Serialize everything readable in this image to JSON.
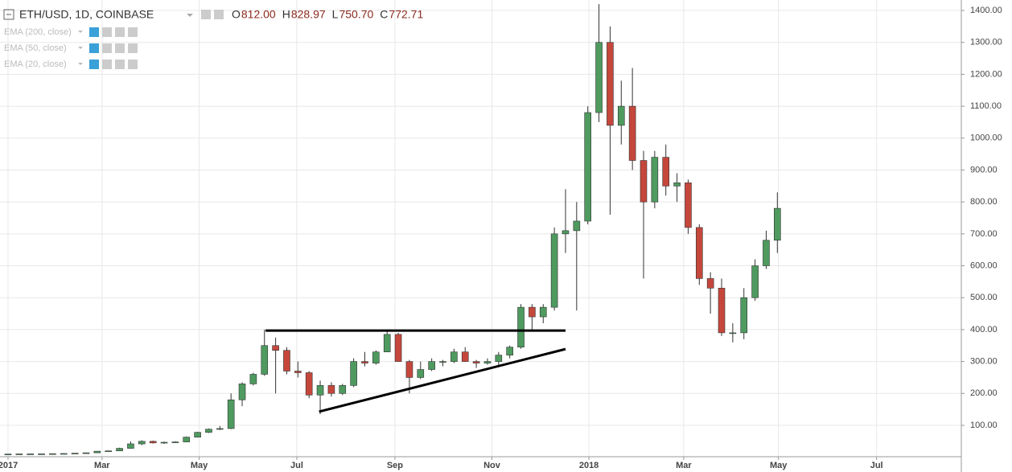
{
  "chart_data": {
    "type": "candlestick",
    "title": "ETH/USD, 1D, COINBASE",
    "ohlc_header": [
      {
        "label": "O",
        "value": "812.00"
      },
      {
        "label": "H",
        "value": "828.97"
      },
      {
        "label": "L",
        "value": "750.70"
      },
      {
        "label": "C",
        "value": "772.71"
      }
    ],
    "indicators": [
      "EMA (200, close)",
      "EMA (50, close)",
      "EMA (20, close)"
    ],
    "up_color": "#4e9a5f",
    "down_color": "#c5473c",
    "ylim": [
      1.7,
      1432.8
    ],
    "xlim": [
      -0.72,
      85.5
    ],
    "yticks": [
      {
        "value": 100,
        "label": "100.00"
      },
      {
        "value": 200,
        "label": "200.00"
      },
      {
        "value": 300,
        "label": "300.00"
      },
      {
        "value": 400,
        "label": "400.00"
      },
      {
        "value": 500,
        "label": "500.00"
      },
      {
        "value": 600,
        "label": "600.00"
      },
      {
        "value": 700,
        "label": "700.00"
      },
      {
        "value": 800,
        "label": "800.00"
      },
      {
        "value": 900,
        "label": "900.00"
      },
      {
        "value": 1000,
        "label": "1000.00"
      },
      {
        "value": 1100,
        "label": "1100.00"
      },
      {
        "value": 1200,
        "label": "1200.00"
      },
      {
        "value": 1300,
        "label": "1300.00"
      },
      {
        "value": 1400,
        "label": "1400.00"
      }
    ],
    "xticks": [
      {
        "value": 0,
        "label": "2017"
      },
      {
        "value": 8.43,
        "label": "Mar"
      },
      {
        "value": 17.14,
        "label": "May"
      },
      {
        "value": 25.9,
        "label": "Jul"
      },
      {
        "value": 34.7,
        "label": "Sep"
      },
      {
        "value": 43.4,
        "label": "Nov"
      },
      {
        "value": 52.1,
        "label": "2018"
      },
      {
        "value": 60.6,
        "label": "Mar"
      },
      {
        "value": 69.1,
        "label": "May"
      },
      {
        "value": 77.9,
        "label": "Jul"
      }
    ],
    "grid": true,
    "candles": [
      [
        8,
        10,
        8,
        10
      ],
      [
        10,
        11,
        9.5,
        10.5
      ],
      [
        10.5,
        11,
        10,
        10.6
      ],
      [
        10.6,
        11,
        10.4,
        10.7
      ],
      [
        10.7,
        11.5,
        10.5,
        11.3
      ],
      [
        11.3,
        12,
        11,
        11.8
      ],
      [
        11.8,
        13,
        11.5,
        12.8
      ],
      [
        12.8,
        15,
        12.5,
        14
      ],
      [
        14,
        19,
        14,
        19
      ],
      [
        19,
        21,
        18,
        20
      ],
      [
        20,
        30,
        20,
        28
      ],
      [
        28,
        50,
        27,
        42
      ],
      [
        42,
        53,
        38,
        50
      ],
      [
        50,
        52,
        43,
        45
      ],
      [
        45,
        49,
        42,
        47
      ],
      [
        47,
        50,
        45,
        48
      ],
      [
        48,
        65,
        48,
        63
      ],
      [
        63,
        80,
        62,
        78
      ],
      [
        78,
        90,
        76,
        88
      ],
      [
        88,
        98,
        85,
        90
      ],
      [
        90,
        200,
        88,
        180
      ],
      [
        180,
        235,
        160,
        230
      ],
      [
        230,
        265,
        225,
        260
      ],
      [
        260,
        400,
        255,
        350
      ],
      [
        350,
        375,
        200,
        335
      ],
      [
        335,
        345,
        260,
        270
      ],
      [
        270,
        300,
        250,
        265
      ],
      [
        265,
        270,
        185,
        195
      ],
      [
        195,
        240,
        135,
        225
      ],
      [
        225,
        235,
        190,
        200
      ],
      [
        200,
        230,
        195,
        225
      ],
      [
        225,
        310,
        220,
        300
      ],
      [
        300,
        330,
        285,
        295
      ],
      [
        295,
        335,
        290,
        330
      ],
      [
        330,
        395,
        330,
        385
      ],
      [
        385,
        390,
        300,
        300
      ],
      [
        300,
        305,
        200,
        250
      ],
      [
        250,
        300,
        245,
        275
      ],
      [
        275,
        310,
        270,
        300
      ],
      [
        300,
        305,
        285,
        300
      ],
      [
        300,
        340,
        295,
        330
      ],
      [
        330,
        345,
        300,
        300
      ],
      [
        300,
        305,
        280,
        295
      ],
      [
        295,
        310,
        290,
        300
      ],
      [
        300,
        330,
        285,
        320
      ],
      [
        320,
        350,
        310,
        345
      ],
      [
        345,
        480,
        340,
        470
      ],
      [
        470,
        480,
        400,
        440
      ],
      [
        440,
        480,
        420,
        470
      ],
      [
        470,
        720,
        460,
        700
      ],
      [
        700,
        840,
        640,
        710
      ],
      [
        710,
        800,
        460,
        740
      ],
      [
        740,
        1100,
        730,
        1080
      ],
      [
        1080,
        1420,
        1050,
        1300
      ],
      [
        1300,
        1350,
        760,
        1040
      ],
      [
        1040,
        1180,
        980,
        1100
      ],
      [
        1100,
        1220,
        900,
        930
      ],
      [
        930,
        960,
        560,
        800
      ],
      [
        800,
        960,
        780,
        940
      ],
      [
        940,
        980,
        820,
        850
      ],
      [
        850,
        890,
        800,
        860
      ],
      [
        860,
        870,
        700,
        720
      ],
      [
        720,
        730,
        540,
        560
      ],
      [
        560,
        580,
        450,
        530
      ],
      [
        530,
        560,
        380,
        390
      ],
      [
        390,
        420,
        360,
        390
      ],
      [
        390,
        530,
        370,
        500
      ],
      [
        500,
        620,
        490,
        600
      ],
      [
        600,
        710,
        590,
        680
      ],
      [
        680,
        830,
        640,
        780
      ]
    ],
    "drawings": [
      {
        "from": [
          23.1,
          397
        ],
        "to": [
          50,
          397
        ]
      },
      {
        "from": [
          27.9,
          143
        ],
        "to": [
          50,
          339
        ]
      }
    ]
  }
}
